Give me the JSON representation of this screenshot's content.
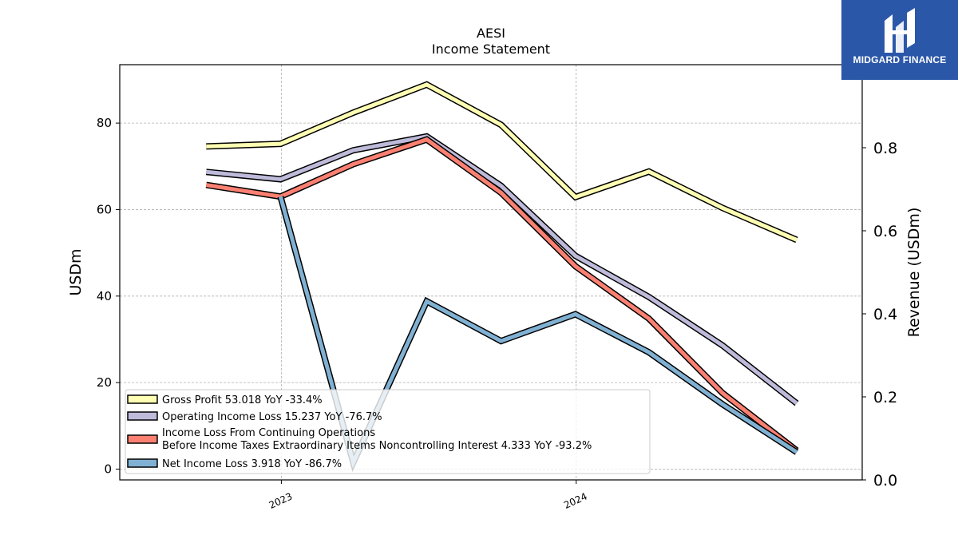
{
  "chart_data": {
    "type": "line",
    "title": "AESI",
    "subtitle": "Income Statement",
    "ylabel": "USDm",
    "ylabel_right": "Revenue (USDm)",
    "ylim": [
      -2.5,
      93.5
    ],
    "y_ticks": [
      0,
      20,
      40,
      60,
      80
    ],
    "ylim_right": [
      0,
      1
    ],
    "y_ticks_right": [
      "0.0",
      "0.2",
      "0.4",
      "0.6",
      "0.8"
    ],
    "x_ticks": [
      "2023",
      "2024"
    ],
    "x": [
      "2022-09-30",
      "2022-12-31",
      "2023-03-31",
      "2023-06-30",
      "2023-09-30",
      "2023-12-31",
      "2024-03-31",
      "2024-06-30",
      "2024-09-30"
    ],
    "grid": true,
    "legend_position": "lower-left",
    "series": [
      {
        "name": "Gross Profit  53.018 YoY -33.4%",
        "color": "#ffffb3",
        "values": [
          74.6,
          75.2,
          82.4,
          88.9,
          79.6,
          62.9,
          68.8,
          60.4,
          53.0
        ]
      },
      {
        "name": "Operating Income Loss  15.237 YoY -76.7%",
        "color": "#bebada",
        "values": [
          68.7,
          67.0,
          73.7,
          76.9,
          65.5,
          49.3,
          39.8,
          28.6,
          15.2
        ]
      },
      {
        "name": [
          "Income Loss From Continuing Operations",
          "Before Income Taxes Extraordinary Items Noncontrolling Interest  4.333 YoY -93.2%"
        ],
        "color": "#fb8072",
        "values": [
          65.7,
          63.0,
          70.5,
          76.2,
          63.9,
          46.9,
          34.8,
          17.6,
          4.3
        ]
      },
      {
        "name": "Net Income Loss  3.918 YoY -86.7%",
        "color": "#80b1d3",
        "values": [
          null,
          63.0,
          1.5,
          38.8,
          29.6,
          35.8,
          27.0,
          15.0,
          3.9
        ]
      }
    ]
  },
  "logo": {
    "text": "MIDGARD FINANCE",
    "color": "#2b57a8"
  }
}
